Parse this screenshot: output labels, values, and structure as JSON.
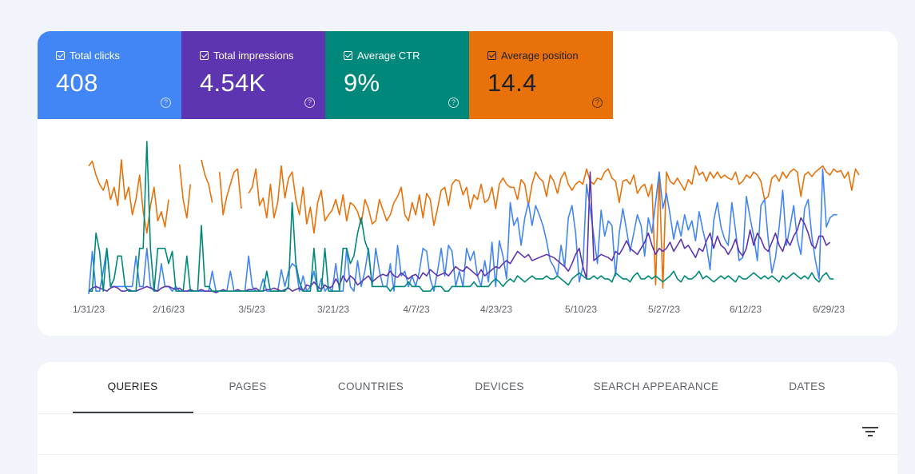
{
  "metrics": [
    {
      "label": "Total clicks",
      "value": "408",
      "color": "#4285f4",
      "text": "light",
      "checked": true
    },
    {
      "label": "Total impressions",
      "value": "4.54K",
      "color": "#5e35b1",
      "text": "light",
      "checked": true
    },
    {
      "label": "Average CTR",
      "value": "9%",
      "color": "#00897b",
      "text": "light",
      "checked": true
    },
    {
      "label": "Average position",
      "value": "14.4",
      "color": "#e8710a",
      "text": "dark",
      "checked": true
    }
  ],
  "help_icon_glyph": "?",
  "chart_data": {
    "type": "line",
    "x_tick_labels": [
      "1/31/23",
      "2/16/23",
      "3/5/23",
      "3/21/23",
      "4/7/23",
      "4/23/23",
      "5/10/23",
      "5/27/23",
      "6/12/23",
      "6/29/23"
    ],
    "x_range": [
      "1/31/23",
      "7/5/23"
    ],
    "grid": false,
    "legend": "none",
    "series": [
      {
        "metric": "Average position",
        "color": "#e8710a",
        "values": [
          0.84,
          0.87,
          0.78,
          0.72,
          0.68,
          0.75,
          0.62,
          0.7,
          0.58,
          0.88,
          0.62,
          0.7,
          0.52,
          0.62,
          0.78,
          0.54,
          0.4,
          0.58,
          0.7,
          0.48,
          0.54,
          0.44,
          0.62,
          null,
          null,
          0.85,
          0.62,
          0.5,
          0.72,
          null,
          null,
          0.88,
          0.78,
          0.72,
          0.6,
          null,
          0.8,
          0.52,
          0.64,
          0.72,
          0.8,
          0.82,
          0.56,
          null,
          0.66,
          0.7,
          0.82,
          0.58,
          0.63,
          0.5,
          0.72,
          0.5,
          0.6,
          0.84,
          0.63,
          0.76,
          0.8,
          0.62,
          0.52,
          0.7,
          0.46,
          0.57,
          0.4,
          0.6,
          0.68,
          0.48,
          0.52,
          0.55,
          0.62,
          0.52,
          0.65,
          0.48,
          0.6,
          0.58,
          0.54,
          0.46,
          0.62,
          0.56,
          0.46,
          0.48,
          0.62,
          0.55,
          0.48,
          0.52,
          0.6,
          0.64,
          0.7,
          0.52,
          0.48,
          0.6,
          0.52,
          0.65,
          0.5,
          0.66,
          0.62,
          0.45,
          0.56,
          0.68,
          0.7,
          0.58,
          0.72,
          0.75,
          0.74,
          0.65,
          0.7,
          0.56,
          0.65,
          0.62,
          0.72,
          0.6,
          0.62,
          0.7,
          0.56,
          0.72,
          0.76,
          0.72,
          0.7,
          0.7,
          0.62,
          0.75,
          0.72,
          0.58,
          0.72,
          0.8,
          0.76,
          0.74,
          0.64,
          0.78,
          0.74,
          0.66,
          0.76,
          0.8,
          0.72,
          0.68,
          0.72,
          0.74,
          0.72,
          0.82,
          0.74,
          0.72,
          0.76,
          0.75,
          0.8,
          0.82,
          0.76,
          0.74,
          0.6,
          0.74,
          0.75,
          0.72,
          0.78,
          0.66,
          0.7,
          0.72,
          0.64,
          0.72,
          0.06,
          0.8,
          0.04,
          0.8,
          0.74,
          0.72,
          0.76,
          0.72,
          0.68,
          0.75,
          0.72,
          0.84,
          0.78,
          0.8,
          0.74,
          0.8,
          0.76,
          0.8,
          0.76,
          0.78,
          0.76,
          0.75,
          0.8,
          0.72,
          0.74,
          0.78,
          0.76,
          0.8,
          0.78,
          0.74,
          0.62,
          0.64,
          0.76,
          0.78,
          0.74,
          0.8,
          0.76,
          0.8,
          0.82,
          0.8,
          0.64,
          0.78,
          0.8,
          0.77,
          0.8,
          0.82,
          0.84,
          0.8,
          0.78,
          0.82,
          0.8,
          0.81,
          0.76,
          0.8,
          0.68,
          0.82,
          0.78
        ]
      },
      {
        "metric": "Total clicks",
        "color": "#4285f4",
        "values": [
          0,
          0.28,
          0.02,
          0.02,
          0.15,
          0.3,
          0.05,
          0.05,
          0.05,
          0.05,
          0.05,
          0.05,
          0.05,
          0.25,
          0.05,
          0.05,
          0.3,
          0.05,
          0.02,
          0.02,
          0.2,
          0.05,
          0.05,
          0.02,
          0.05,
          0.02,
          0.02,
          0.02,
          0.02,
          0.02,
          0.02,
          0.02,
          0.02,
          0.02,
          0.15,
          0.02,
          0.02,
          0.02,
          0.02,
          0.15,
          0.02,
          0.02,
          0.02,
          0.02,
          0.25,
          0.05,
          0.02,
          0.02,
          0.1,
          0.02,
          0.02,
          0.02,
          0.02,
          0.16,
          0.05,
          0.15,
          0.2,
          0.18,
          0.02,
          0.12,
          0.02,
          0.05,
          0.15,
          0.02,
          0.1,
          0.02,
          0.05,
          0.02,
          0.2,
          0.02,
          0.02,
          0.3,
          0.05,
          0.02,
          0.22,
          0.05,
          0.15,
          0.3,
          0.05,
          0.3,
          0.15,
          0.05,
          0.05,
          0.2,
          0.02,
          0.32,
          0.12,
          0.15,
          0.05,
          0.12,
          0.05,
          0.15,
          0.3,
          0.28,
          0.1,
          0.02,
          0.15,
          0.3,
          0.12,
          0.32,
          0.28,
          0.05,
          0.15,
          0.05,
          0.3,
          0.22,
          0.28,
          0.12,
          0.05,
          0.22,
          0.08,
          0.34,
          0.05,
          0.35,
          0.25,
          0.1,
          0.6,
          0.45,
          0.5,
          0.32,
          0.5,
          0.6,
          0.45,
          0.58,
          0.52,
          0.45,
          0.35,
          0.22,
          0.18,
          0.12,
          0.32,
          0.18,
          0.5,
          0.58,
          0.4,
          0.08,
          0.18,
          0.72,
          0.56,
          0.38,
          0.2,
          0.55,
          0.38,
          0.48,
          0.45,
          0.12,
          0.4,
          0.56,
          0.42,
          0.28,
          0.4,
          0.52,
          0.45,
          0.25,
          0.5,
          0.4,
          0.6,
          0.8,
          0.56,
          0.66,
          0.52,
          0.36,
          0.48,
          0.38,
          0.52,
          0.42,
          0.48,
          0.35,
          0.54,
          0.42,
          0.32,
          0.16,
          0.48,
          0.6,
          0.44,
          0.36,
          0.32,
          0.6,
          0.42,
          0.22,
          0.24,
          0.64,
          0.5,
          0.38,
          0.22,
          0.58,
          0.62,
          0.36,
          0.14,
          0.24,
          0.44,
          0.68,
          0.32,
          0.44,
          0.58,
          0.36,
          0.26,
          0.56,
          0.62,
          0.38,
          0.22,
          0.1,
          0.82,
          0.44,
          0.5,
          0.52,
          0.52
        ]
      },
      {
        "metric": "Total impressions",
        "color": "#5e35b1",
        "values": [
          0.02,
          0.04,
          0.05,
          0.04,
          0.03,
          0.02,
          0.04,
          0.05,
          0.04,
          0.02,
          0.02,
          0.03,
          0.02,
          0.02,
          0.03,
          0.04,
          0.05,
          0.04,
          0.03,
          0.02,
          0.04,
          0.05,
          0.05,
          0.04,
          0.03,
          0.04,
          0.02,
          0.02,
          0.03,
          0.02,
          0.02,
          0.03,
          0.02,
          0.02,
          0.02,
          0.01,
          0.02,
          0.03,
          0.02,
          0.02,
          0.02,
          0.03,
          0.02,
          0.02,
          0.03,
          0.03,
          0.04,
          0.02,
          0.02,
          0.03,
          0.03,
          0.04,
          0.03,
          0.02,
          0.03,
          0.04,
          0.02,
          0.03,
          0.04,
          0.02,
          0.06,
          0.05,
          0.08,
          0.05,
          0.03,
          0.06,
          0.04,
          0.05,
          0.1,
          0.06,
          0.12,
          0.08,
          0.12,
          0.1,
          0.06,
          0.08,
          0.1,
          0.12,
          0.08,
          0.1,
          0.12,
          0.13,
          0.12,
          0.15,
          0.12,
          0.11,
          0.14,
          0.12,
          0.1,
          0.12,
          0.13,
          0.1,
          0.14,
          0.12,
          0.16,
          0.14,
          0.12,
          0.13,
          0.14,
          0.12,
          0.15,
          0.18,
          0.16,
          0.15,
          0.18,
          0.16,
          0.14,
          0.12,
          0.16,
          0.12,
          0.14,
          0.16,
          0.18,
          0.17,
          0.2,
          0.22,
          0.2,
          0.24,
          0.28,
          0.26,
          0.24,
          0.26,
          0.22,
          0.23,
          0.24,
          0.25,
          0.26,
          0.25,
          0.24,
          0.22,
          0.2,
          0.18,
          0.15,
          0.2,
          0.26,
          0.3,
          0.18,
          0.1,
          0.8,
          0.22,
          0.24,
          0.26,
          0.25,
          0.24,
          0.22,
          0.28,
          0.26,
          0.3,
          0.35,
          0.3,
          0.28,
          0.26,
          0.3,
          0.34,
          0.4,
          0.32,
          0.26,
          0.3,
          0.28,
          0.3,
          0.34,
          0.28,
          0.32,
          0.36,
          0.3,
          0.32,
          0.28,
          0.24,
          0.3,
          0.28,
          0.35,
          0.4,
          0.3,
          0.38,
          0.32,
          0.3,
          0.26,
          0.3,
          0.36,
          0.28,
          0.25,
          0.3,
          0.42,
          0.32,
          0.4,
          0.36,
          0.3,
          0.28,
          0.34,
          0.4,
          0.32,
          0.28,
          0.36,
          0.32,
          0.38,
          0.42,
          0.5,
          0.46,
          0.4,
          0.32,
          0.3,
          0.38,
          0.38,
          0.32,
          0.34
        ]
      },
      {
        "metric": "Average CTR",
        "color": "#00897b",
        "values": [
          0.02,
          0.02,
          0.4,
          0.28,
          0.02,
          0.3,
          0.05,
          0.1,
          0.25,
          0.25,
          0.05,
          0.02,
          0.02,
          0.02,
          0.3,
          0.3,
          1.0,
          0.3,
          0.02,
          0.3,
          0.3,
          0.3,
          0.2,
          0.28,
          0.02,
          0.02,
          0.02,
          0.25,
          0.02,
          0.02,
          0.02,
          0.45,
          0.05,
          0.05,
          0.02,
          0.02,
          0.02,
          0.02,
          0.02,
          0.02,
          0.02,
          0.02,
          0.02,
          0.02,
          0.02,
          0.02,
          0.02,
          0.02,
          0.02,
          0.15,
          0.02,
          0.02,
          0.02,
          0.02,
          0.02,
          0.05,
          0.6,
          0.2,
          0.08,
          0.02,
          0.02,
          0.02,
          0.3,
          0.02,
          0.02,
          0.3,
          0.02,
          0.02,
          0.02,
          0.02,
          0.3,
          0.3,
          0.2,
          0.25,
          0.4,
          0.5,
          0.35,
          0.28,
          0.05,
          0.05,
          0.05,
          0.05,
          0.05,
          0.02,
          0.05,
          0.05,
          0.05,
          0.05,
          0.08,
          0.05,
          0.05,
          0.05,
          0.02,
          0.02,
          0.02,
          0.05,
          0.05,
          0.05,
          0.02,
          0.02,
          0.05,
          0.05,
          0.05,
          0.05,
          0.05,
          0.05,
          0.08,
          0.05,
          0.05,
          0.05,
          0.05,
          0.08,
          0.1,
          0.08,
          0.05,
          0.08,
          0.1,
          0.08,
          0.12,
          0.1,
          0.08,
          0.1,
          0.12,
          0.1,
          0.1,
          0.1,
          0.12,
          0.1,
          0.1,
          0.12,
          0.1,
          0.08,
          0.06,
          0.1,
          0.12,
          0.14,
          0.12,
          0.1,
          0.1,
          0.12,
          0.1,
          0.12,
          0.1,
          0.1,
          0.08,
          0.14,
          0.12,
          0.1,
          0.1,
          0.08,
          0.12,
          0.14,
          0.1,
          0.1,
          0.12,
          0.1,
          0.12,
          0.1,
          0.08,
          0.1,
          0.12,
          0.15,
          0.1,
          0.08,
          0.12,
          0.1,
          0.1,
          0.12,
          0.15,
          0.1,
          0.12,
          0.1,
          0.08,
          0.1,
          0.12,
          0.1,
          0.12,
          0.1,
          0.08,
          0.12,
          0.1,
          0.1,
          0.12,
          0.14,
          0.12,
          0.1,
          0.12,
          0.1,
          0.12,
          0.1,
          0.08,
          0.12,
          0.1,
          0.12,
          0.14,
          0.12,
          0.1,
          0.12,
          0.1,
          0.14,
          0.1,
          0.08,
          0.12,
          0.14,
          0.1,
          0.1
        ]
      }
    ]
  },
  "tabs": [
    {
      "label": "QUERIES",
      "active": true
    },
    {
      "label": "PAGES",
      "active": false
    },
    {
      "label": "COUNTRIES",
      "active": false
    },
    {
      "label": "DEVICES",
      "active": false
    },
    {
      "label": "SEARCH APPEARANCE",
      "active": false
    },
    {
      "label": "DATES",
      "active": false
    }
  ],
  "filter_icon": "filter-list-icon",
  "colors": {
    "page_background": "#f1f4fb",
    "tab_indicator": "#3c4043"
  }
}
